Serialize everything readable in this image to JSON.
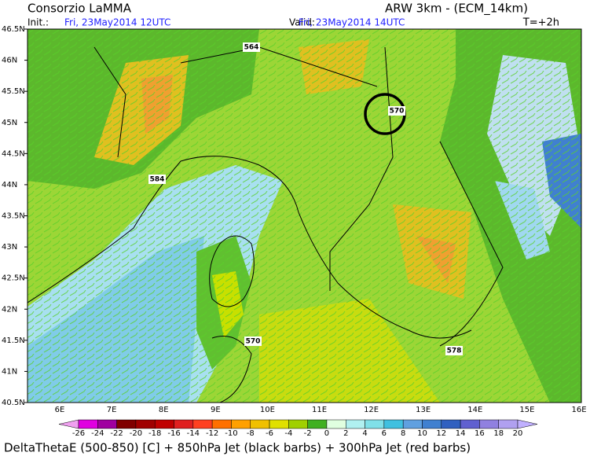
{
  "header": {
    "title": "Consorzio LaMMA",
    "model": "ARW 3km - (ECM_14km)",
    "init_label": "Init.:",
    "init_time": "Fri, 23May2014 12UTC",
    "valid_label": "Valid:",
    "valid_time": "Fri, 23May2014 14UTC",
    "lead": "T=+2h"
  },
  "map": {
    "lat_labels": [
      "46.5N",
      "46N",
      "45.5N",
      "45N",
      "44.5N",
      "44N",
      "43.5N",
      "43N",
      "42.5N",
      "42N",
      "41.5N",
      "41N",
      "40.5N"
    ],
    "lon_labels": [
      "6E",
      "7E",
      "8E",
      "9E",
      "10E",
      "11E",
      "12E",
      "13E",
      "14E",
      "15E",
      "16E"
    ],
    "contour_labels": [
      "564",
      "570",
      "584",
      "570",
      "578"
    ]
  },
  "colorbar": {
    "ticks": [
      -26,
      -24,
      -22,
      -20,
      -18,
      -16,
      -14,
      -12,
      -10,
      -8,
      -6,
      -4,
      -2,
      0,
      2,
      4,
      6,
      8,
      10,
      12,
      14,
      16,
      18,
      20
    ],
    "colors": [
      "#f0a0f0",
      "#e000e0",
      "#a000a0",
      "#800000",
      "#a00000",
      "#c00000",
      "#e02020",
      "#ff4020",
      "#ff7000",
      "#ffa000",
      "#f0c000",
      "#e0e000",
      "#a0d000",
      "#40b020",
      "#e0ffe0",
      "#b0f0f0",
      "#80e0e8",
      "#40c0e0",
      "#60a0e0",
      "#4080d0",
      "#3060c0",
      "#6060d0",
      "#9080e0",
      "#b0a0f0",
      "#c0b0ff"
    ]
  },
  "caption": "DeltaThetaE (500-850) [C] + 850hPa Jet (black barbs) + 300hPa Jet (red barbs)"
}
